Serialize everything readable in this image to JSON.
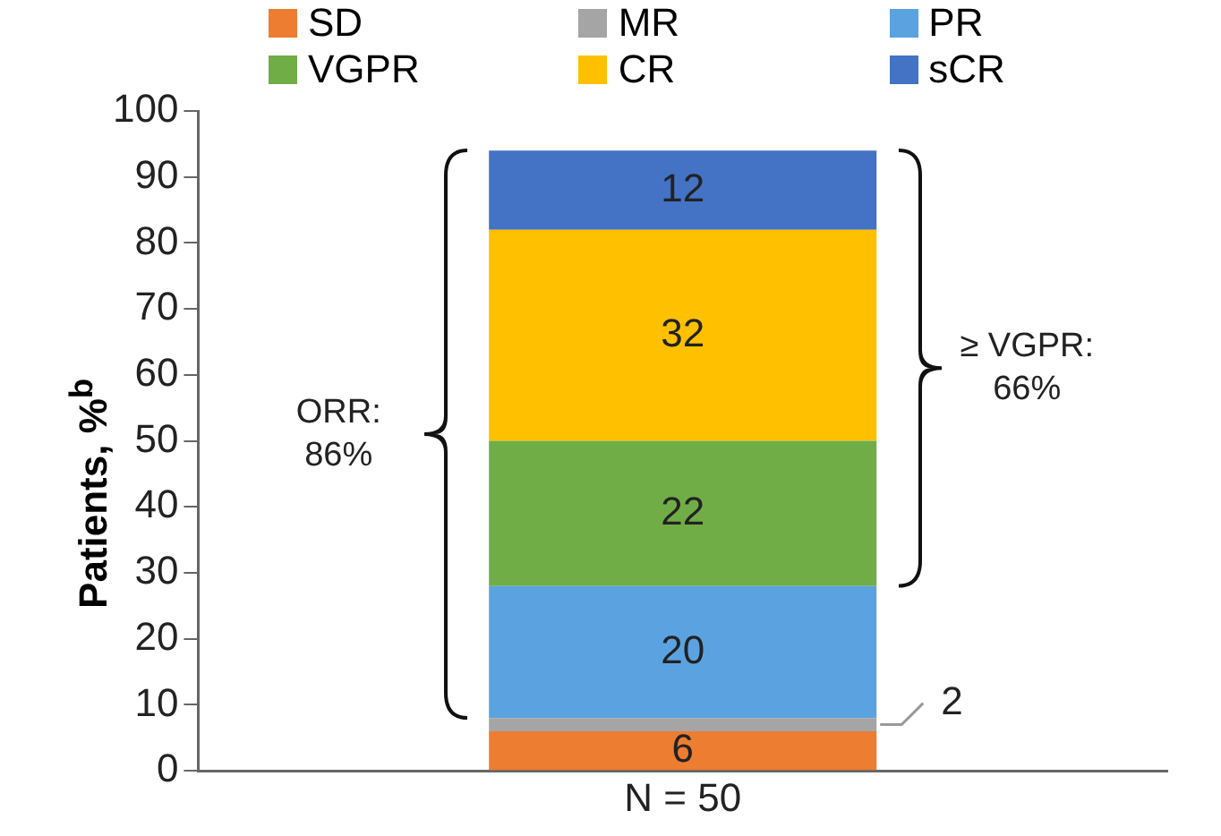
{
  "chart_data": {
    "type": "bar",
    "stacked": true,
    "ylabel": "Patients, %$^{b}$",
    "categories": [
      "N = 50"
    ],
    "series": [
      {
        "name": "SD",
        "color": "#ed7d31",
        "values": [
          6
        ]
      },
      {
        "name": "MR",
        "color": "#a5a5a5",
        "values": [
          2
        ]
      },
      {
        "name": "PR",
        "color": "#5ba3e0",
        "values": [
          20
        ]
      },
      {
        "name": "VGPR",
        "color": "#70ad47",
        "values": [
          22
        ]
      },
      {
        "name": "CR",
        "color": "#ffc000",
        "values": [
          32
        ]
      },
      {
        "name": "sCR",
        "color": "#4472c4",
        "values": [
          12
        ]
      }
    ],
    "ylim": [
      0,
      100
    ],
    "yticks": [
      0,
      10,
      20,
      30,
      40,
      50,
      60,
      70,
      80,
      90,
      100
    ],
    "grid": false,
    "legend": "top",
    "data_labels": true,
    "annotations": [
      "ORR:\n86%",
      "≥ VGPR:\n66%"
    ]
  }
}
